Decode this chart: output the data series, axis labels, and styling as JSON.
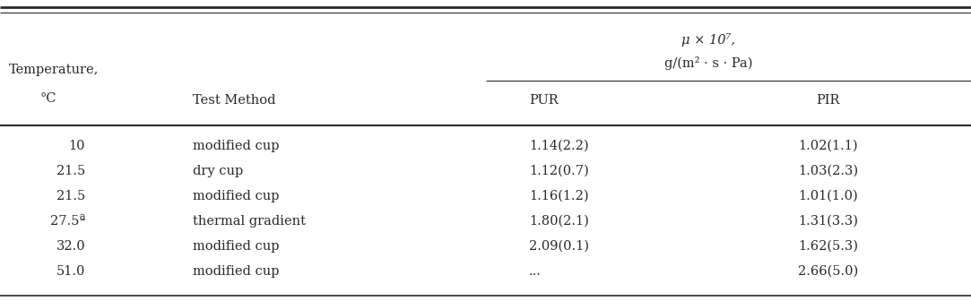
{
  "header_line1": "μ × 10⁷,",
  "header_line2": "g/(m² · s · Pa)",
  "col_header_left1": "Temperature,",
  "col_header_left2": "°C",
  "col_header_test": "Test Method",
  "col_header_pur": "PUR",
  "col_header_pir": "PIR",
  "rows": [
    [
      "10",
      "modified cup",
      "1.14(2.2)",
      "1.02(1.1)"
    ],
    [
      "21.5",
      "dry cup",
      "1.12(0.7)",
      "1.03(2.3)"
    ],
    [
      "21.5",
      "modified cup",
      "1.16(1.2)",
      "1.01(1.0)"
    ],
    [
      "27.5ª",
      "thermal gradient",
      "1.80(2.1)",
      "1.31(3.3)"
    ],
    [
      "32.0",
      "modified cup",
      "2.09(0.1)",
      "1.62(5.3)"
    ],
    [
      "51.0",
      "modified cup",
      "...",
      "2.66(5.0)"
    ]
  ],
  "background_color": "#ffffff",
  "text_color": "#2a2a2a",
  "fontsize": 10.5
}
